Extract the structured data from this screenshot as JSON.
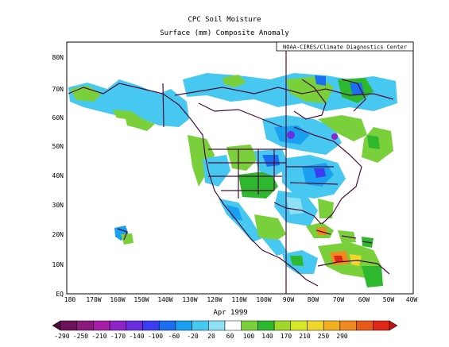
{
  "title": "CPC Soil Moisture",
  "subtitle": "Surface  (mm) Composite Anomaly",
  "credit": "NOAA-CIRES/Climate Diagnostics Center",
  "period": "Apr 1999",
  "y_ticks": [
    "80N",
    "70N",
    "60N",
    "50N",
    "40N",
    "30N",
    "20N",
    "10N",
    "EQ"
  ],
  "x_ticks": [
    "180",
    "170W",
    "160W",
    "150W",
    "140W",
    "130W",
    "120W",
    "110W",
    "100W",
    "90W",
    "80W",
    "70W",
    "60W",
    "50W",
    "40W"
  ],
  "colorbar": {
    "labels": [
      "-290",
      "-250",
      "-210",
      "-170",
      "-140",
      "-100",
      "-60",
      "-20",
      "20",
      "60",
      "100",
      "140",
      "170",
      "210",
      "250",
      "290"
    ],
    "colors": [
      "#4a0e3a",
      "#6b1459",
      "#8a1a7c",
      "#a61ea6",
      "#8d24c8",
      "#6a2ee0",
      "#3a3ef0",
      "#1a6ef0",
      "#1aa0f0",
      "#46c8f0",
      "#8ee0f5",
      "#ffffff",
      "#7ad03a",
      "#2eb82e",
      "#a0d82a",
      "#d8e82a",
      "#f0d82a",
      "#f0b020",
      "#f08a20",
      "#e85a18",
      "#e02818",
      "#c01010"
    ]
  }
}
